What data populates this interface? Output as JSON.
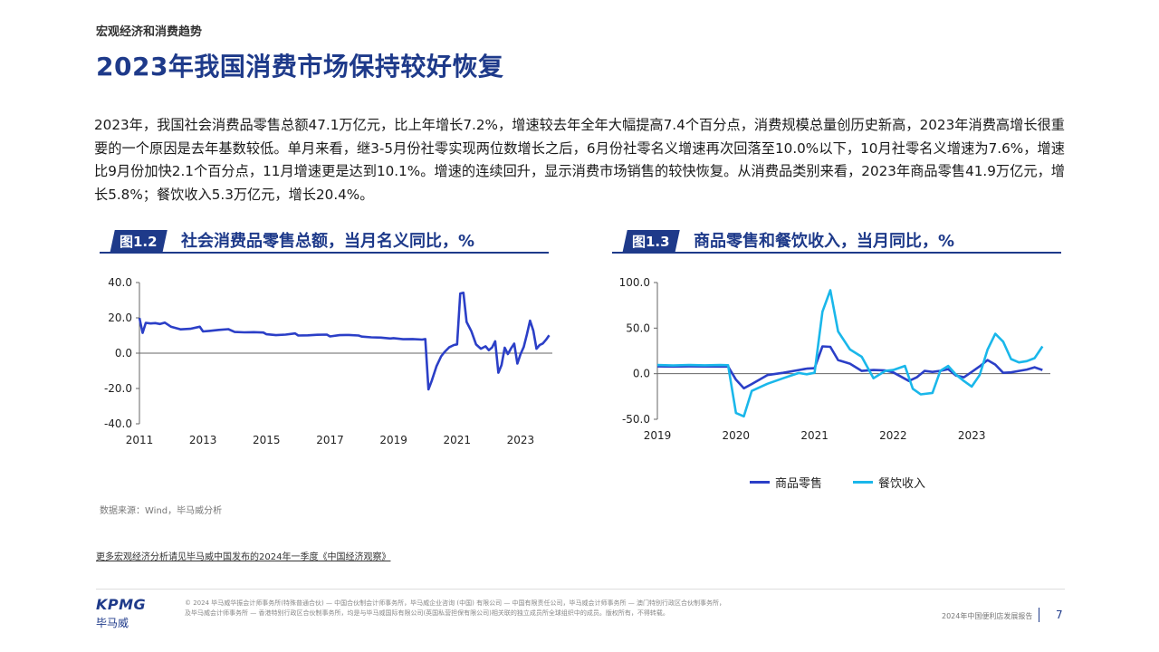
{
  "header": {
    "section": "宏观经济和消费趋势",
    "title": "2023年我国消费市场保持较好恢复"
  },
  "intro": "2023年，我国社会消费品零售总额47.1万亿元，比上年增长7.2%，增速较去年全年大幅提高7.4个百分点，消费规模总量创历史新高，2023年消费高增长很重要的一个原因是去年基数较低。单月来看，继3-5月份社零实现两位数增长之后，6月份社零名义增速再次回落至10.0%以下，10月社零名义增速为7.6%，增速比9月份加快2.1个百分点，11月增速更是达到10.1%。增速的连续回升，显示消费市场销售的较快恢复。从消费品类别来看，2023年商品零售41.9万亿元，增长5.8%；餐饮收入5.3万亿元，增长20.4%。",
  "figures": [
    {
      "badge": "图1.2",
      "title": "社会消费品零售总额，当月名义同比，%"
    },
    {
      "badge": "图1.3",
      "title": "商品零售和餐饮收入，当月同比，%"
    }
  ],
  "colors": {
    "primary": "#1e3a8a",
    "series_dark": "#2b3fc7",
    "series_light": "#1ab7ea"
  },
  "chart_data": [
    {
      "type": "line",
      "title": "社会消费品零售总额，当月名义同比，%",
      "ylim": [
        -40,
        40
      ],
      "yticks": [
        "40.0",
        "20.0",
        "0.0",
        "-20.0",
        "-40.0"
      ],
      "xticks": [
        "2011",
        "2013",
        "2015",
        "2017",
        "2019",
        "2021",
        "2023"
      ],
      "xlim": [
        2011.0,
        2024.0
      ],
      "grid": false,
      "series": [
        {
          "name": "",
          "x": [
            2011.0,
            2011.1,
            2011.2,
            2011.35,
            2011.5,
            2011.65,
            2011.8,
            2012.0,
            2012.3,
            2012.6,
            2012.9,
            2013.0,
            2013.2,
            2013.5,
            2013.8,
            2014.0,
            2014.3,
            2014.6,
            2014.9,
            2015.0,
            2015.3,
            2015.6,
            2015.9,
            2016.0,
            2016.3,
            2016.6,
            2016.9,
            2017.0,
            2017.3,
            2017.6,
            2017.9,
            2018.0,
            2018.3,
            2018.6,
            2018.9,
            2019.0,
            2019.3,
            2019.6,
            2019.9,
            2020.0,
            2020.1,
            2020.2,
            2020.35,
            2020.5,
            2020.6,
            2020.75,
            2020.9,
            2021.0,
            2021.1,
            2021.2,
            2021.3,
            2021.45,
            2021.6,
            2021.75,
            2021.9,
            2022.0,
            2022.1,
            2022.2,
            2022.3,
            2022.4,
            2022.5,
            2022.6,
            2022.7,
            2022.8,
            2022.9,
            2023.0,
            2023.1,
            2023.2,
            2023.3,
            2023.4,
            2023.5,
            2023.6,
            2023.7,
            2023.8,
            2023.9
          ],
          "y": [
            19.9,
            11.5,
            17.2,
            16.8,
            17.0,
            16.5,
            17.3,
            14.9,
            13.5,
            13.8,
            15.0,
            12.3,
            12.6,
            13.2,
            13.6,
            12.0,
            11.8,
            11.9,
            11.7,
            10.7,
            10.2,
            10.5,
            11.2,
            10.0,
            10.1,
            10.4,
            10.5,
            9.5,
            10.2,
            10.3,
            10.0,
            9.4,
            9.0,
            8.8,
            8.3,
            8.5,
            7.9,
            8.0,
            7.7,
            8.0,
            -20.5,
            -15.8,
            -7.5,
            -1.8,
            0.5,
            3.3,
            4.6,
            5.0,
            33.8,
            34.2,
            17.7,
            12.4,
            4.9,
            2.5,
            3.9,
            1.7,
            3.2,
            6.7,
            -11.1,
            -6.7,
            3.1,
            -0.5,
            2.7,
            5.4,
            -5.9,
            -0.5,
            3.5,
            10.6,
            18.4,
            12.7,
            2.5,
            4.6,
            5.5,
            7.6,
            10.1
          ]
        }
      ]
    },
    {
      "type": "line",
      "title": "商品零售和餐饮收入，当月同比，%",
      "ylim": [
        -50,
        100
      ],
      "yticks": [
        "100.0",
        "50.0",
        "0.0",
        "-50.0"
      ],
      "xticks": [
        "2019",
        "2020",
        "2021",
        "2022",
        "2023"
      ],
      "xlim": [
        2019.0,
        2024.0
      ],
      "grid": false,
      "legend": "bottom-center",
      "series": [
        {
          "name": "商品零售",
          "x": [
            2019.0,
            2019.2,
            2019.4,
            2019.6,
            2019.8,
            2019.9,
            2020.0,
            2020.1,
            2020.2,
            2020.4,
            2020.6,
            2020.8,
            2020.9,
            2021.0,
            2021.1,
            2021.2,
            2021.3,
            2021.45,
            2021.6,
            2021.75,
            2021.9,
            2022.0,
            2022.2,
            2022.3,
            2022.4,
            2022.5,
            2022.6,
            2022.7,
            2022.8,
            2022.9,
            2023.0,
            2023.1,
            2023.2,
            2023.3,
            2023.4,
            2023.5,
            2023.6,
            2023.7,
            2023.8,
            2023.9
          ],
          "y": [
            8.0,
            7.8,
            8.0,
            7.9,
            7.8,
            7.9,
            -6.6,
            -16.0,
            -11.4,
            -1.5,
            1.0,
            4.0,
            5.5,
            6.0,
            30.0,
            29.5,
            15.0,
            11.0,
            3.0,
            4.0,
            3.5,
            1.5,
            -8.0,
            -4.0,
            3.0,
            2.0,
            3.0,
            5.0,
            -2.0,
            -4.0,
            2.0,
            8.0,
            15.0,
            10.0,
            1.0,
            1.5,
            3.0,
            4.5,
            7.0,
            4.0
          ]
        },
        {
          "name": "餐饮收入",
          "x": [
            2019.0,
            2019.2,
            2019.4,
            2019.6,
            2019.8,
            2019.9,
            2020.0,
            2020.1,
            2020.2,
            2020.4,
            2020.6,
            2020.8,
            2020.9,
            2021.0,
            2021.1,
            2021.2,
            2021.3,
            2021.45,
            2021.6,
            2021.75,
            2021.9,
            2022.0,
            2022.15,
            2022.25,
            2022.35,
            2022.5,
            2022.6,
            2022.7,
            2022.8,
            2022.9,
            2023.0,
            2023.1,
            2023.2,
            2023.3,
            2023.4,
            2023.5,
            2023.6,
            2023.7,
            2023.8,
            2023.9
          ],
          "y": [
            9.5,
            9.0,
            9.6,
            9.2,
            9.5,
            9.3,
            -43.1,
            -46.8,
            -18.9,
            -11.1,
            -5.0,
            0.8,
            -0.6,
            1.0,
            68.0,
            91.6,
            46.4,
            26.6,
            18.5,
            -5.0,
            3.0,
            4.0,
            8.5,
            -16.5,
            -22.7,
            -21.1,
            3.1,
            8.5,
            -1.0,
            -8.0,
            -14.1,
            -1.5,
            26.3,
            43.8,
            35.1,
            16.1,
            12.4,
            13.8,
            17.1,
            30.0
          ]
        }
      ]
    }
  ],
  "source": "数据来源：Wind，毕马威分析",
  "more_link": "更多宏观经济分析请见毕马威中国发布的2024年一季度《中国经济观察》",
  "footer": {
    "logo": "KPMG",
    "logo_cn": "毕马威",
    "legal_1": "© 2024 毕马威华振会计师事务所(特殊普通合伙) — 中国合伙制会计师事务所，毕马威企业咨询 (中国) 有限公司 — 中国有限责任公司，毕马威会计师事务所 — 澳门特别行政区合伙制事务所，",
    "legal_2": "及毕马威会计师事务所 — 香港特别行政区合伙制事务所，均是与毕马威国际有限公司(英国私营担保有限公司)相关联的独立成员所全球组织中的成员。版权所有，不得转载。",
    "report_name": "2024年中国便利店发展报告",
    "page": "7"
  }
}
